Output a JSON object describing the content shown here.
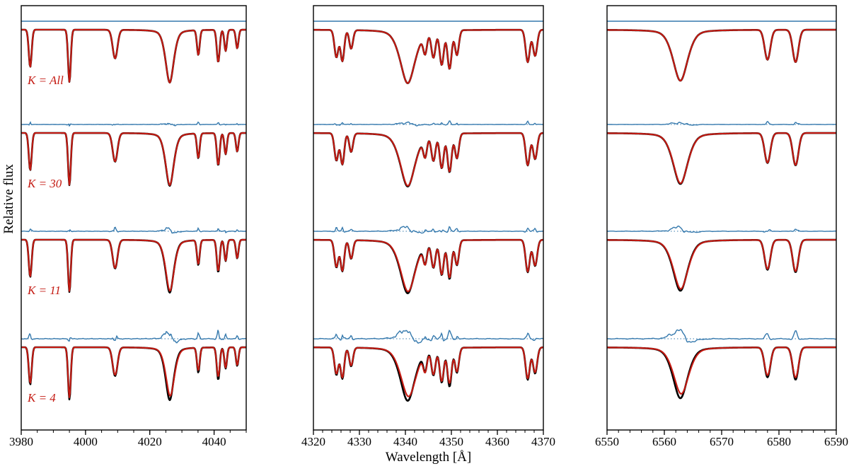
{
  "figure": {
    "kind": "stellar-spectra-fit-comparison",
    "n_panels": 3,
    "n_rows": 4
  },
  "chart_data": {
    "type": "line",
    "title": "",
    "xlabel": "Wavelength [Å]",
    "ylabel": "Relative flux",
    "legend_position": "none",
    "grid": false,
    "layout_note": "Three wavelength panels; four vertically offset spectra per panel. Black = observed spectrum, red = model, blue = residual above each spectrum (flat dotted line = zero level). Row labels at left of first panel.",
    "colors": {
      "model": "#c41a12",
      "data": "#000000",
      "residual": "#3579ad",
      "axis": "#000000",
      "background": "#ffffff"
    },
    "rows": [
      {
        "label": "K = All",
        "noise": 0,
        "mismatch": 0,
        "spike": 0
      },
      {
        "label": "K = 30",
        "noise": 0.7,
        "mismatch": 0.018,
        "spike": 5
      },
      {
        "label": "K = 11",
        "noise": 1.1,
        "mismatch": 0.05,
        "spike": 7
      },
      {
        "label": "K = 4",
        "noise": 1.8,
        "mismatch": 0.12,
        "spike": 9
      }
    ],
    "panels": [
      {
        "xmin": 3980,
        "xmax": 4050,
        "minor_step": 5,
        "ticks": [
          3980,
          4000,
          4020,
          4040
        ],
        "lines": [
          {
            "c": 3982.8,
            "d": 0.6,
            "w": 0.45,
            "shape": "g"
          },
          {
            "c": 3995.0,
            "d": 0.84,
            "w": 0.42,
            "shape": "g"
          },
          {
            "c": 4009.2,
            "d": 0.46,
            "w": 0.75,
            "shape": "g"
          },
          {
            "c": 4026.2,
            "d": 0.85,
            "w": 1.35,
            "shape": "v",
            "ms": 1.1
          },
          {
            "c": 4035.1,
            "d": 0.4,
            "w": 0.42,
            "shape": "g",
            "ms": 1.3
          },
          {
            "c": 4041.3,
            "d": 0.52,
            "w": 0.45,
            "shape": "g",
            "ms": 1.3
          },
          {
            "c": 4043.6,
            "d": 0.34,
            "w": 0.4,
            "shape": "g"
          },
          {
            "c": 4047.2,
            "d": 0.3,
            "w": 0.4,
            "shape": "g"
          }
        ]
      },
      {
        "xmin": 4320,
        "xmax": 4370,
        "minor_step": 2,
        "ticks": [
          4320,
          4330,
          4340,
          4350,
          4360,
          4370
        ],
        "lines": [
          {
            "c": 4325.0,
            "d": 0.44,
            "w": 0.42,
            "shape": "g"
          },
          {
            "c": 4326.3,
            "d": 0.5,
            "w": 0.4,
            "shape": "g"
          },
          {
            "c": 4328.2,
            "d": 0.3,
            "w": 0.4,
            "shape": "g"
          },
          {
            "c": 4340.5,
            "d": 0.86,
            "w": 1.7,
            "shape": "v",
            "ms": 1.1
          },
          {
            "c": 4344.3,
            "d": 0.3,
            "w": 0.4,
            "shape": "g"
          },
          {
            "c": 4346.1,
            "d": 0.42,
            "w": 0.45,
            "shape": "g"
          },
          {
            "c": 4347.9,
            "d": 0.55,
            "w": 0.45,
            "shape": "g"
          },
          {
            "c": 4349.6,
            "d": 0.62,
            "w": 0.45,
            "shape": "g",
            "ms": 1.2
          },
          {
            "c": 4351.2,
            "d": 0.4,
            "w": 0.42,
            "shape": "g"
          },
          {
            "c": 4366.6,
            "d": 0.52,
            "w": 0.45,
            "shape": "g"
          },
          {
            "c": 4368.2,
            "d": 0.42,
            "w": 0.45,
            "shape": "g"
          }
        ]
      },
      {
        "xmin": 6550,
        "xmax": 6590,
        "minor_step": 2,
        "ticks": [
          6550,
          6560,
          6570,
          6580,
          6590
        ],
        "lines": [
          {
            "c": 6562.8,
            "d": 0.82,
            "w": 1.35,
            "shape": "v",
            "ms": 1.2
          },
          {
            "c": 6578.0,
            "d": 0.48,
            "w": 0.5,
            "shape": "g",
            "ms": 0.9
          },
          {
            "c": 6582.9,
            "d": 0.52,
            "w": 0.5,
            "shape": "g",
            "ms": 0.9
          }
        ]
      }
    ]
  }
}
